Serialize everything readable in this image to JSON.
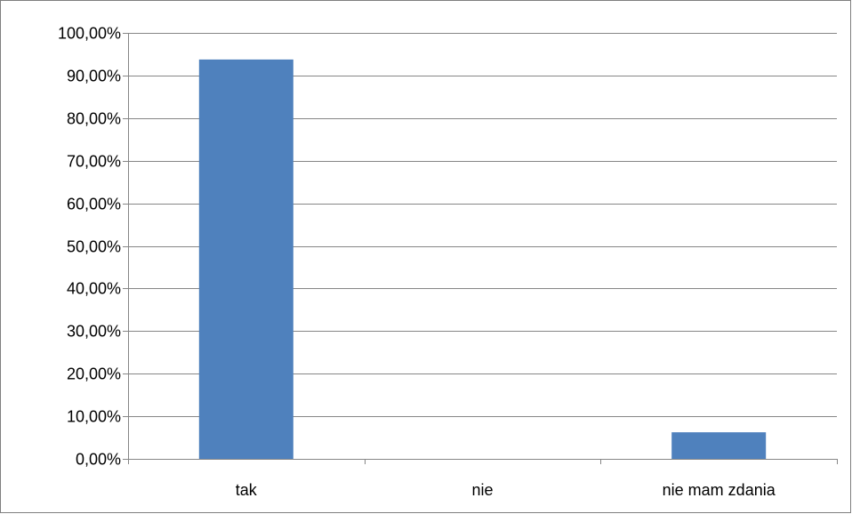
{
  "chart_data": {
    "type": "bar",
    "categories": [
      "tak",
      "nie",
      "nie mam zdania"
    ],
    "values": [
      93.75,
      0.0,
      6.25
    ],
    "title": "",
    "xlabel": "",
    "ylabel": "",
    "ylim": [
      0,
      100
    ],
    "y_ticks": [
      0,
      10,
      20,
      30,
      40,
      50,
      60,
      70,
      80,
      90,
      100
    ],
    "y_tick_labels": [
      "0,00%",
      "10,00%",
      "20,00%",
      "30,00%",
      "40,00%",
      "50,00%",
      "60,00%",
      "70,00%",
      "80,00%",
      "90,00%",
      "100,00%"
    ],
    "grid": true,
    "legend": "none",
    "bar_color": "#4f81bd",
    "grid_color": "#868686"
  }
}
